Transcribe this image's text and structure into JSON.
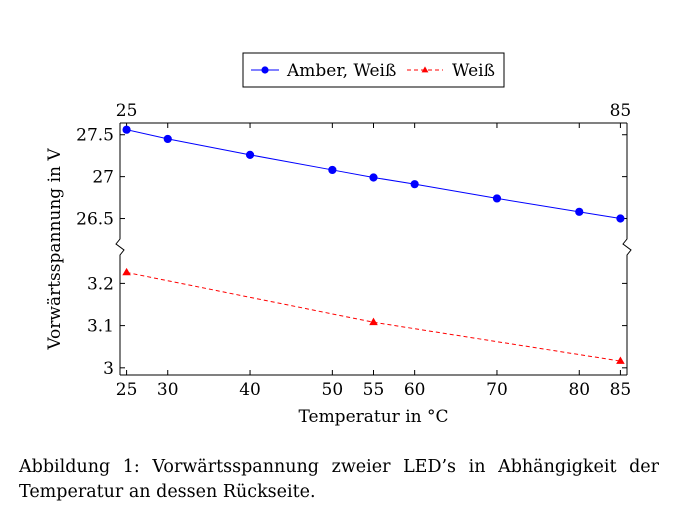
{
  "chart_data": {
    "type": "line",
    "broken_axis": true,
    "x": [
      25,
      30,
      40,
      50,
      55,
      60,
      70,
      80,
      85
    ],
    "series": [
      {
        "name": "Amber, Weiß",
        "color": "#0000ff",
        "line_style": "solid",
        "marker": "circle",
        "x": [
          25,
          30,
          40,
          50,
          55,
          60,
          70,
          80,
          85
        ],
        "values": [
          27.56,
          27.45,
          27.26,
          27.08,
          26.99,
          26.91,
          26.74,
          26.58,
          26.5
        ]
      },
      {
        "name": "Weiß",
        "color": "#ff0000",
        "line_style": "dashed",
        "marker": "triangle",
        "x": [
          25,
          55,
          85
        ],
        "values": [
          3.226,
          3.108,
          3.016
        ]
      }
    ],
    "xlabel": "Temperatur in °C",
    "ylabel": "Vorwärtsspannung in V",
    "xlim": [
      24.2,
      85.8
    ],
    "x_ticks": [
      "25",
      "30",
      "40",
      "50",
      "55",
      "60",
      "70",
      "80",
      "85"
    ],
    "x_top_ticks": [
      "25",
      "85"
    ],
    "upper_panel": {
      "ylim": [
        26.22,
        27.64
      ],
      "y_ticks": [
        "27.5",
        "27",
        "26.5"
      ],
      "y_tick_values": [
        27.5,
        27.0,
        26.5
      ]
    },
    "lower_panel": {
      "ylim": [
        2.983,
        3.272
      ],
      "y_ticks": [
        "3.2",
        "3.1",
        "3"
      ],
      "y_tick_values": [
        3.2,
        3.1,
        3.0
      ]
    },
    "legend_position": "top-center",
    "grid": false
  },
  "caption": "Abbildung 1: Vorwärtsspannung zweier LED’s in Abhängigkeit der Temperatur an dessen Rückseite."
}
